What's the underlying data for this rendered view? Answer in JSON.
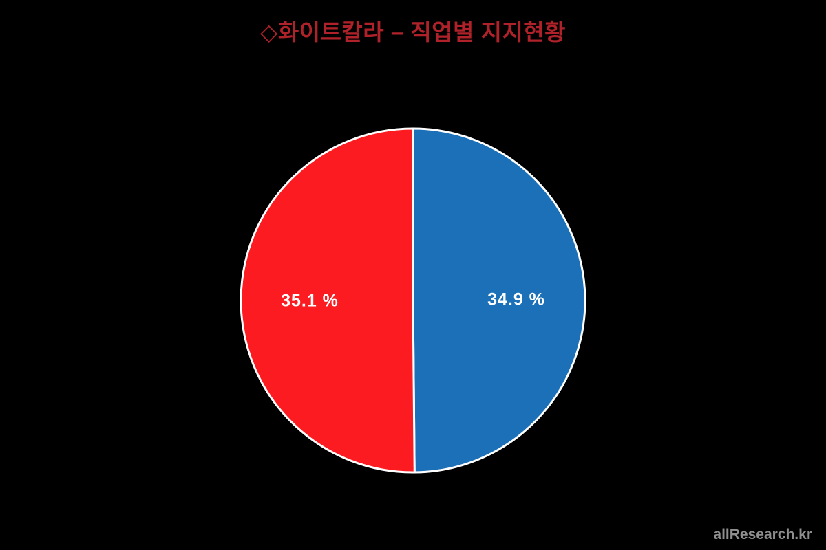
{
  "page": {
    "background": "#000000"
  },
  "title": {
    "text": "◇화이트칼라 – 직업별 지지현황",
    "color": "#B0222A"
  },
  "watermark": {
    "text": "allResearch.kr",
    "color": "#8F8F8F"
  },
  "chart_data": {
    "type": "pie",
    "title": "◇화이트칼라 – 직업별 지지현황",
    "start_angle_deg": 0,
    "direction": "clockwise",
    "stroke_color": "#FFFFFF",
    "stroke_width": 3,
    "labels_color": "#FFFFFF",
    "slices": [
      {
        "name": "blue",
        "side": "right",
        "label": "34.9 %",
        "value": 34.9,
        "color": "#1B70B8"
      },
      {
        "name": "red",
        "side": "left",
        "label": "35.1 %",
        "value": 35.1,
        "color": "#FB1B21"
      }
    ]
  }
}
